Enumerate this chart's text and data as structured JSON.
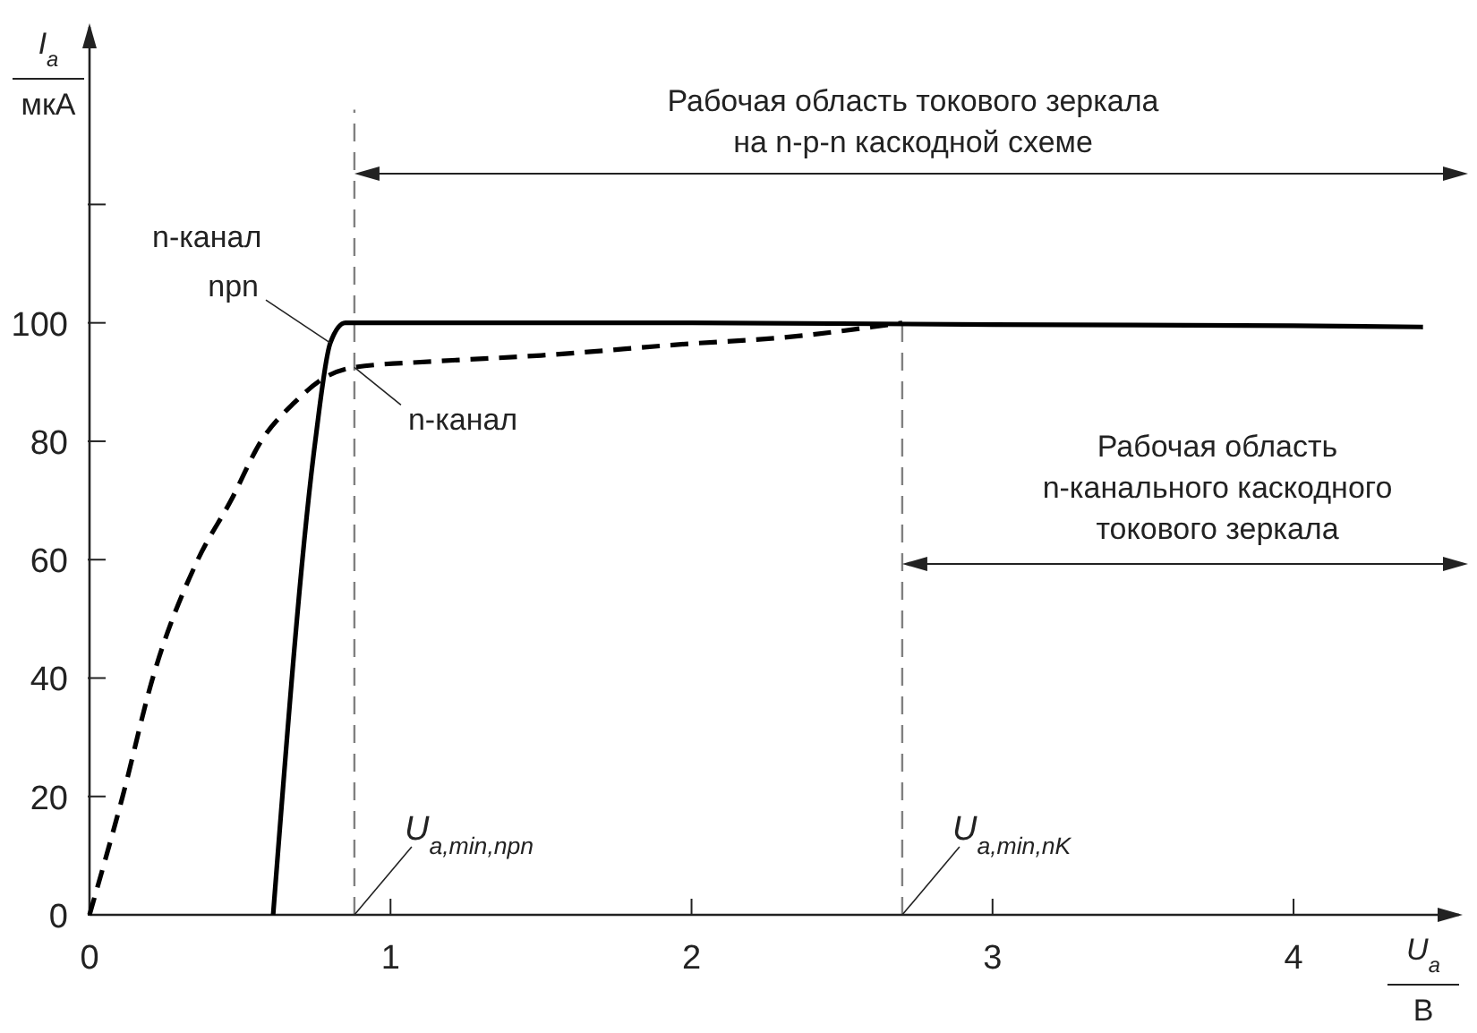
{
  "chart_data": {
    "type": "line",
    "xlabel": "U$_{a}$\nВ",
    "ylabel": "I$_{a}$\nмкА",
    "xlim": [
      0,
      4.55
    ],
    "ylim": [
      0,
      150
    ],
    "xticks": [
      0,
      1,
      2,
      3,
      4
    ],
    "yticks": [
      0,
      20,
      40,
      60,
      80,
      100,
      {
        "value": 120,
        "label": null
      }
    ],
    "grid": false,
    "legend": false,
    "marker": "none",
    "series": [
      {
        "name": "npn",
        "color": "#000000",
        "line_style": "solid",
        "x": [
          0.61,
          0.75,
          0.8,
          0.85,
          0.9,
          2,
          3,
          4,
          4.43
        ],
        "values": [
          0,
          80,
          96.6,
          100,
          100,
          100,
          99.7,
          99.5,
          99.3
        ]
      },
      {
        "name": "n-канал",
        "color": "#000000",
        "line_style": "dashed",
        "x": [
          0,
          0.11,
          0.21,
          0.36,
          0.47,
          0.57,
          0.68,
          0.79,
          0.88,
          1.15,
          1.5,
          2,
          2.3,
          2.6,
          2.7
        ],
        "values": [
          0,
          20,
          40,
          60,
          70,
          80,
          86.5,
          91,
          92.5,
          93.5,
          94.5,
          96.5,
          97.5,
          99.3,
          100
        ]
      }
    ],
    "ref_lines": [
      {
        "axis": "x",
        "value": 0.88,
        "color": "#808080",
        "line_style": "dashed"
      },
      {
        "axis": "x",
        "value": 2.7,
        "color": "#808080",
        "line_style": "dashed"
      }
    ],
    "annotations": [
      "n-канал",
      "Рабочая область токового зеркала\nна n-p-n каскодной схеме",
      "Рабочая область\nn-канального каскодного\nтокового зеркала",
      {
        "text": "U$_{a,min,npn}$",
        "x": 0.88,
        "y": 0
      },
      {
        "text": "U$_{a,min,nK}$",
        "x": 2.7,
        "y": 0
      }
    ]
  }
}
